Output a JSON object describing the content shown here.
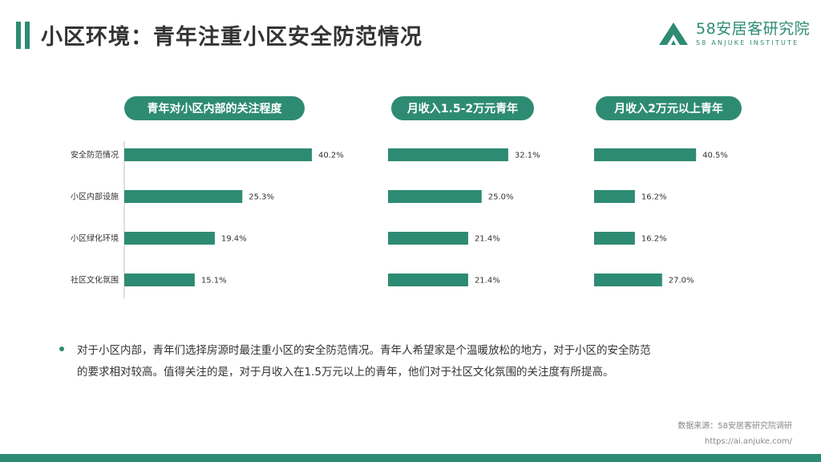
{
  "title": "小区环境：青年注重小区安全防范情况",
  "brand": {
    "name_cn": "58安居客研究院",
    "name_en": "58 ANJUKE INSTITUTE",
    "logo_icon": "triangle-house-icon"
  },
  "colors": {
    "accent": "#2e8b73",
    "title_bar": "#2e8b73",
    "text": "#333333",
    "muted": "#888888"
  },
  "chart_data": [
    {
      "type": "bar",
      "orientation": "horizontal",
      "title": "青年对小区内部的关注程度",
      "categories": [
        "安全防范情况",
        "小区内部设施",
        "小区绿化环境",
        "社区文化氛围"
      ],
      "values": [
        40.2,
        25.3,
        19.4,
        15.1
      ],
      "value_labels": [
        "40.2%",
        "25.3%",
        "19.4%",
        "15.1%"
      ],
      "xlim": [
        0,
        50
      ]
    },
    {
      "type": "bar",
      "orientation": "horizontal",
      "title": "月收入1.5-2万元青年",
      "categories": [
        "安全防范情况",
        "小区内部设施",
        "小区绿化环境",
        "社区文化氛围"
      ],
      "values": [
        32.1,
        25.0,
        21.4,
        21.4
      ],
      "value_labels": [
        "32.1%",
        "25.0%",
        "21.4%",
        "21.4%"
      ],
      "xlim": [
        0,
        50
      ]
    },
    {
      "type": "bar",
      "orientation": "horizontal",
      "title": "月收入2万元以上青年",
      "categories": [
        "安全防范情况",
        "小区内部设施",
        "小区绿化环境",
        "社区文化氛围"
      ],
      "values": [
        40.5,
        16.2,
        16.2,
        27.0
      ],
      "value_labels": [
        "40.5%",
        "16.2%",
        "16.2%",
        "27.0%"
      ],
      "xlim": [
        0,
        50
      ]
    }
  ],
  "summary": {
    "line1": "对于小区内部，青年们选择房源时最注重小区的安全防范情况。青年人希望家是个温暖放松的地方，对于小区的安全防范",
    "line2": "的要求相对较高。值得关注的是，对于月收入在1.5万元以上的青年，他们对于社区文化氛围的关注度有所提高。"
  },
  "source": {
    "label": "数据来源：58安居客研究院调研",
    "url": "https://ai.anjuke.com/"
  }
}
